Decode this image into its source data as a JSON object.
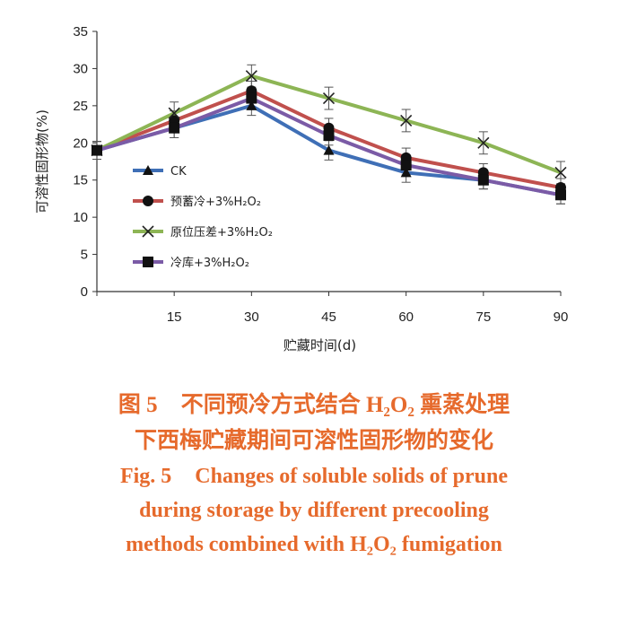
{
  "chart_data": {
    "type": "line",
    "title": "",
    "xlabel": "贮藏时间(d)",
    "ylabel": "可溶性固形物(%)",
    "x": [
      0,
      15,
      30,
      45,
      60,
      75,
      90
    ],
    "x_tick_labels": [
      "15",
      "30",
      "45",
      "60",
      "75",
      "90"
    ],
    "xlim": [
      0,
      90
    ],
    "ylim": [
      0,
      35
    ],
    "y_ticks": [
      0,
      5,
      10,
      15,
      20,
      25,
      30,
      35
    ],
    "grid": false,
    "legend_position": "left-middle",
    "series": [
      {
        "name": "CK",
        "marker": "triangle",
        "color": "#3f6fb6",
        "values": [
          19,
          22,
          25,
          19,
          16,
          15,
          13
        ],
        "errors": [
          1.2,
          1.3,
          1.3,
          1.3,
          1.3,
          1.2,
          1.2
        ]
      },
      {
        "name": "预蓄冷+3%H₂O₂",
        "marker": "circle",
        "color": "#c0504d",
        "values": [
          19,
          23,
          27,
          22,
          18,
          16,
          14
        ],
        "errors": [
          1.2,
          1.3,
          1.3,
          1.3,
          1.3,
          1.2,
          1.2
        ]
      },
      {
        "name": "原位压差+3%H₂O₂",
        "marker": "x",
        "color": "#8db555",
        "values": [
          19,
          24,
          29,
          26,
          23,
          20,
          16
        ],
        "errors": [
          1.2,
          1.5,
          1.5,
          1.5,
          1.5,
          1.5,
          1.5
        ]
      },
      {
        "name": "冷库+3%H₂O₂",
        "marker": "square",
        "color": "#7b5ba6",
        "values": [
          19,
          22,
          26,
          21,
          17,
          15,
          13
        ],
        "errors": [
          1.2,
          1.3,
          1.3,
          1.3,
          1.3,
          1.2,
          1.2
        ]
      }
    ]
  },
  "caption": {
    "zh_label": "图 5",
    "zh_line1": "不同预冷方式结合 H₂O₂ 熏蒸处理",
    "zh_line2": "下西梅贮藏期间可溶性固形物的变化",
    "en_label": "Fig. 5",
    "en_line1": "Changes of soluble solids of prune",
    "en_line2": "during storage by different precooling",
    "en_line3": "methods combined with H₂O₂ fumigation"
  }
}
